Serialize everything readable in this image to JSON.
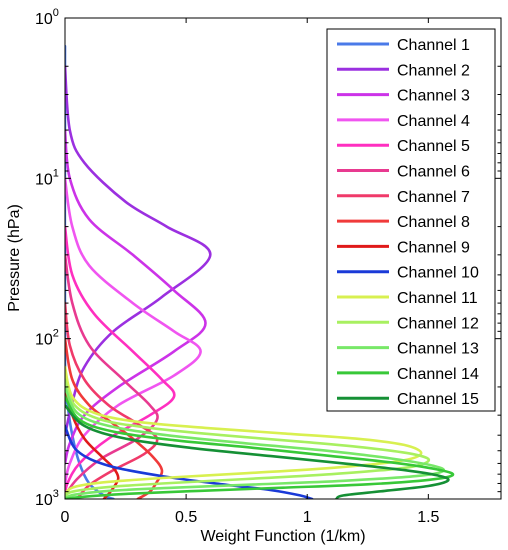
{
  "chart_data": {
    "type": "line",
    "xlabel": "Weight Function (1/km)",
    "ylabel": "Pressure (hPa)",
    "xlim": [
      0,
      1.8
    ],
    "ylim": [
      1,
      1000
    ],
    "y_scale": "log",
    "y_reversed": true,
    "x_ticks": [
      "0",
      "0.5",
      "1",
      "1.5"
    ],
    "x_tick_values": [
      0,
      0.5,
      1,
      1.5
    ],
    "y_ticks": [
      {
        "value": 1,
        "base": "10",
        "exp": "0"
      },
      {
        "value": 10,
        "base": "10",
        "exp": "1"
      },
      {
        "value": 100,
        "base": "10",
        "exp": "2"
      },
      {
        "value": 1000,
        "base": "10",
        "exp": "3"
      }
    ],
    "grid": false,
    "legend_position": "top-right",
    "series": [
      {
        "name": "Channel 1",
        "color": "#4a7ae8",
        "points": [
          [
            0.0,
            1.5
          ],
          [
            0.0,
            150
          ],
          [
            0.01,
            250
          ],
          [
            0.03,
            400
          ],
          [
            0.06,
            600
          ],
          [
            0.1,
            800
          ],
          [
            0.16,
            950
          ],
          [
            0.2,
            1000
          ]
        ]
      },
      {
        "name": "Channel 2",
        "color": "#9b30e0",
        "points": [
          [
            0.0,
            2
          ],
          [
            0.02,
            5
          ],
          [
            0.08,
            8
          ],
          [
            0.25,
            14
          ],
          [
            0.42,
            20
          ],
          [
            0.6,
            30
          ],
          [
            0.4,
            55
          ],
          [
            0.2,
            90
          ],
          [
            0.08,
            150
          ],
          [
            0.03,
            250
          ],
          [
            0.0,
            400
          ]
        ]
      },
      {
        "name": "Channel 3",
        "color": "#cc33e8",
        "points": [
          [
            0.0,
            5
          ],
          [
            0.02,
            10
          ],
          [
            0.1,
            18
          ],
          [
            0.28,
            30
          ],
          [
            0.45,
            50
          ],
          [
            0.58,
            80
          ],
          [
            0.45,
            120
          ],
          [
            0.22,
            200
          ],
          [
            0.08,
            300
          ],
          [
            0.02,
            450
          ],
          [
            0.0,
            600
          ]
        ]
      },
      {
        "name": "Channel 4",
        "color": "#f055f0",
        "points": [
          [
            0.0,
            10
          ],
          [
            0.03,
            20
          ],
          [
            0.1,
            35
          ],
          [
            0.28,
            60
          ],
          [
            0.45,
            90
          ],
          [
            0.56,
            120
          ],
          [
            0.45,
            170
          ],
          [
            0.22,
            260
          ],
          [
            0.08,
            400
          ],
          [
            0.02,
            600
          ],
          [
            0.0,
            800
          ]
        ]
      },
      {
        "name": "Channel 5",
        "color": "#ff2fc0",
        "points": [
          [
            0.0,
            20
          ],
          [
            0.03,
            40
          ],
          [
            0.12,
            70
          ],
          [
            0.28,
            120
          ],
          [
            0.4,
            180
          ],
          [
            0.45,
            230
          ],
          [
            0.35,
            300
          ],
          [
            0.18,
            420
          ],
          [
            0.06,
            600
          ],
          [
            0.01,
            800
          ],
          [
            0.0,
            950
          ]
        ]
      },
      {
        "name": "Channel 6",
        "color": "#e83a90",
        "points": [
          [
            0.0,
            30
          ],
          [
            0.03,
            60
          ],
          [
            0.1,
            110
          ],
          [
            0.24,
            180
          ],
          [
            0.35,
            260
          ],
          [
            0.38,
            320
          ],
          [
            0.3,
            420
          ],
          [
            0.15,
            560
          ],
          [
            0.05,
            750
          ],
          [
            0.0,
            950
          ]
        ]
      },
      {
        "name": "Channel 7",
        "color": "#f03a6a",
        "points": [
          [
            0.0,
            60
          ],
          [
            0.02,
            110
          ],
          [
            0.08,
            180
          ],
          [
            0.18,
            260
          ],
          [
            0.3,
            340
          ],
          [
            0.38,
            420
          ],
          [
            0.33,
            520
          ],
          [
            0.2,
            660
          ],
          [
            0.1,
            820
          ],
          [
            0.05,
            1000
          ]
        ]
      },
      {
        "name": "Channel 8",
        "color": "#f03a3a",
        "points": [
          [
            0.0,
            100
          ],
          [
            0.03,
            180
          ],
          [
            0.1,
            260
          ],
          [
            0.2,
            340
          ],
          [
            0.28,
            420
          ],
          [
            0.36,
            540
          ],
          [
            0.4,
            660
          ],
          [
            0.38,
            780
          ],
          [
            0.35,
            900
          ],
          [
            0.3,
            1000
          ]
        ]
      },
      {
        "name": "Channel 9",
        "color": "#e01a1a",
        "points": [
          [
            0.0,
            200
          ],
          [
            0.03,
            300
          ],
          [
            0.08,
            420
          ],
          [
            0.15,
            540
          ],
          [
            0.2,
            640
          ],
          [
            0.22,
            740
          ],
          [
            0.2,
            850
          ],
          [
            0.18,
            930
          ],
          [
            0.16,
            1000
          ]
        ]
      },
      {
        "name": "Channel 10",
        "color": "#1a3ad8",
        "points": [
          [
            0.0,
            350
          ],
          [
            0.05,
            500
          ],
          [
            0.18,
            620
          ],
          [
            0.4,
            720
          ],
          [
            0.65,
            810
          ],
          [
            0.85,
            880
          ],
          [
            0.97,
            950
          ],
          [
            1.02,
            1000
          ]
        ]
      },
      {
        "name": "Channel 11",
        "color": "#d8f050",
        "points": [
          [
            0.0,
            150
          ],
          [
            0.03,
            230
          ],
          [
            0.12,
            290
          ],
          [
            0.3,
            330
          ],
          [
            0.58,
            360
          ],
          [
            0.9,
            390
          ],
          [
            1.2,
            420
          ],
          [
            1.4,
            460
          ],
          [
            1.47,
            520
          ],
          [
            1.38,
            580
          ],
          [
            1.1,
            640
          ],
          [
            0.75,
            690
          ],
          [
            0.4,
            740
          ],
          [
            0.15,
            790
          ],
          [
            0.03,
            850
          ],
          [
            0.0,
            950
          ]
        ]
      },
      {
        "name": "Channel 12",
        "color": "#a8f060",
        "points": [
          [
            0.0,
            180
          ],
          [
            0.04,
            260
          ],
          [
            0.15,
            320
          ],
          [
            0.35,
            360
          ],
          [
            0.65,
            400
          ],
          [
            0.98,
            440
          ],
          [
            1.25,
            480
          ],
          [
            1.45,
            530
          ],
          [
            1.5,
            580
          ],
          [
            1.4,
            640
          ],
          [
            1.1,
            700
          ],
          [
            0.75,
            750
          ],
          [
            0.4,
            800
          ],
          [
            0.15,
            850
          ],
          [
            0.03,
            900
          ],
          [
            0.0,
            960
          ]
        ]
      },
      {
        "name": "Channel 13",
        "color": "#78e868",
        "points": [
          [
            0.0,
            200
          ],
          [
            0.05,
            290
          ],
          [
            0.18,
            350
          ],
          [
            0.42,
            400
          ],
          [
            0.75,
            450
          ],
          [
            1.08,
            500
          ],
          [
            1.35,
            560
          ],
          [
            1.52,
            620
          ],
          [
            1.56,
            670
          ],
          [
            1.45,
            720
          ],
          [
            1.15,
            770
          ],
          [
            0.8,
            810
          ],
          [
            0.45,
            850
          ],
          [
            0.18,
            890
          ],
          [
            0.04,
            940
          ],
          [
            0.0,
            990
          ]
        ]
      },
      {
        "name": "Channel 14",
        "color": "#38c838",
        "points": [
          [
            0.0,
            230
          ],
          [
            0.06,
            320
          ],
          [
            0.2,
            380
          ],
          [
            0.45,
            430
          ],
          [
            0.78,
            480
          ],
          [
            1.1,
            540
          ],
          [
            1.38,
            600
          ],
          [
            1.55,
            660
          ],
          [
            1.6,
            710
          ],
          [
            1.5,
            760
          ],
          [
            1.25,
            810
          ],
          [
            0.9,
            850
          ],
          [
            0.55,
            890
          ],
          [
            0.25,
            930
          ],
          [
            0.07,
            970
          ],
          [
            0.0,
            1000
          ]
        ]
      },
      {
        "name": "Channel 15",
        "color": "#159035",
        "points": [
          [
            0.0,
            260
          ],
          [
            0.08,
            350
          ],
          [
            0.25,
            420
          ],
          [
            0.52,
            480
          ],
          [
            0.85,
            540
          ],
          [
            1.15,
            600
          ],
          [
            1.4,
            660
          ],
          [
            1.55,
            720
          ],
          [
            1.58,
            770
          ],
          [
            1.5,
            830
          ],
          [
            1.32,
            890
          ],
          [
            1.15,
            950
          ],
          [
            1.12,
            1000
          ]
        ]
      }
    ]
  }
}
